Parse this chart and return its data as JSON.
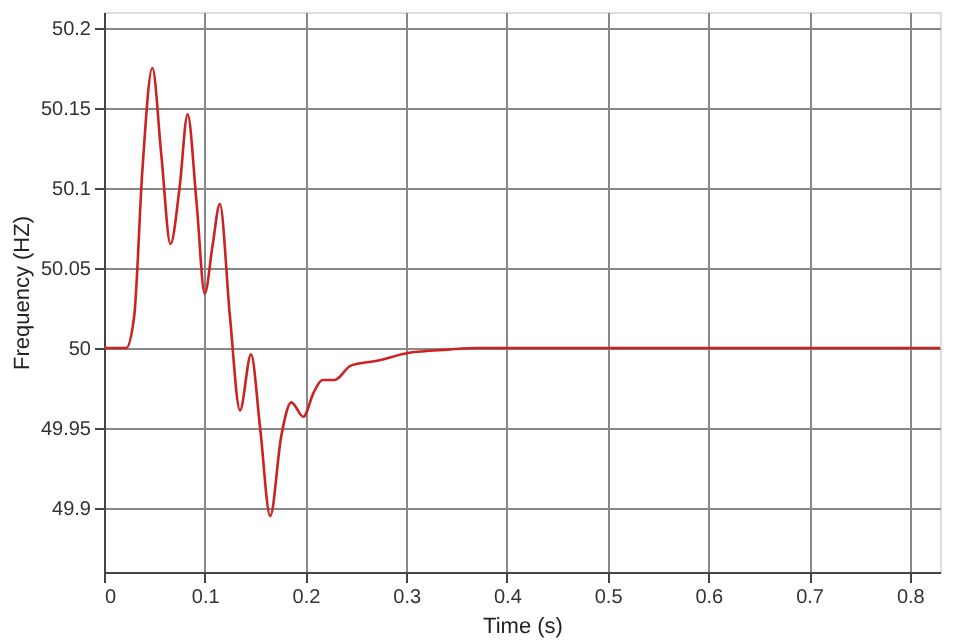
{
  "chart_data": {
    "type": "line",
    "xlabel": "Time (s)",
    "ylabel": "Frequency (HZ)",
    "xlim": [
      0,
      0.83
    ],
    "ylim": [
      49.86,
      50.21
    ],
    "xticks": [
      0,
      0.1,
      0.2,
      0.3,
      0.4,
      0.5,
      0.6,
      0.7,
      0.8
    ],
    "yticks": [
      49.9,
      49.95,
      50,
      50.05,
      50.1,
      50.15,
      50.2
    ],
    "grid": true,
    "marker": "none",
    "line_style": "solid",
    "series": [
      {
        "color": "#cc2222",
        "x": [
          0,
          0.022,
          0.03,
          0.038,
          0.048,
          0.057,
          0.066,
          0.075,
          0.083,
          0.092,
          0.1,
          0.108,
          0.115,
          0.125,
          0.135,
          0.146,
          0.155,
          0.165,
          0.176,
          0.186,
          0.198,
          0.208,
          0.217,
          0.229,
          0.245,
          0.271,
          0.303,
          0.342,
          0.37,
          0.83
        ],
        "values": [
          50,
          50,
          50.02,
          50.11,
          50.175,
          50.12,
          50.065,
          50.1,
          50.146,
          50.09,
          50.034,
          50.065,
          50.09,
          50.02,
          49.961,
          49.996,
          49.95,
          49.895,
          49.945,
          49.966,
          49.957,
          49.972,
          49.98,
          49.98,
          49.989,
          49.992,
          49.997,
          49.999,
          50,
          50
        ]
      }
    ]
  }
}
